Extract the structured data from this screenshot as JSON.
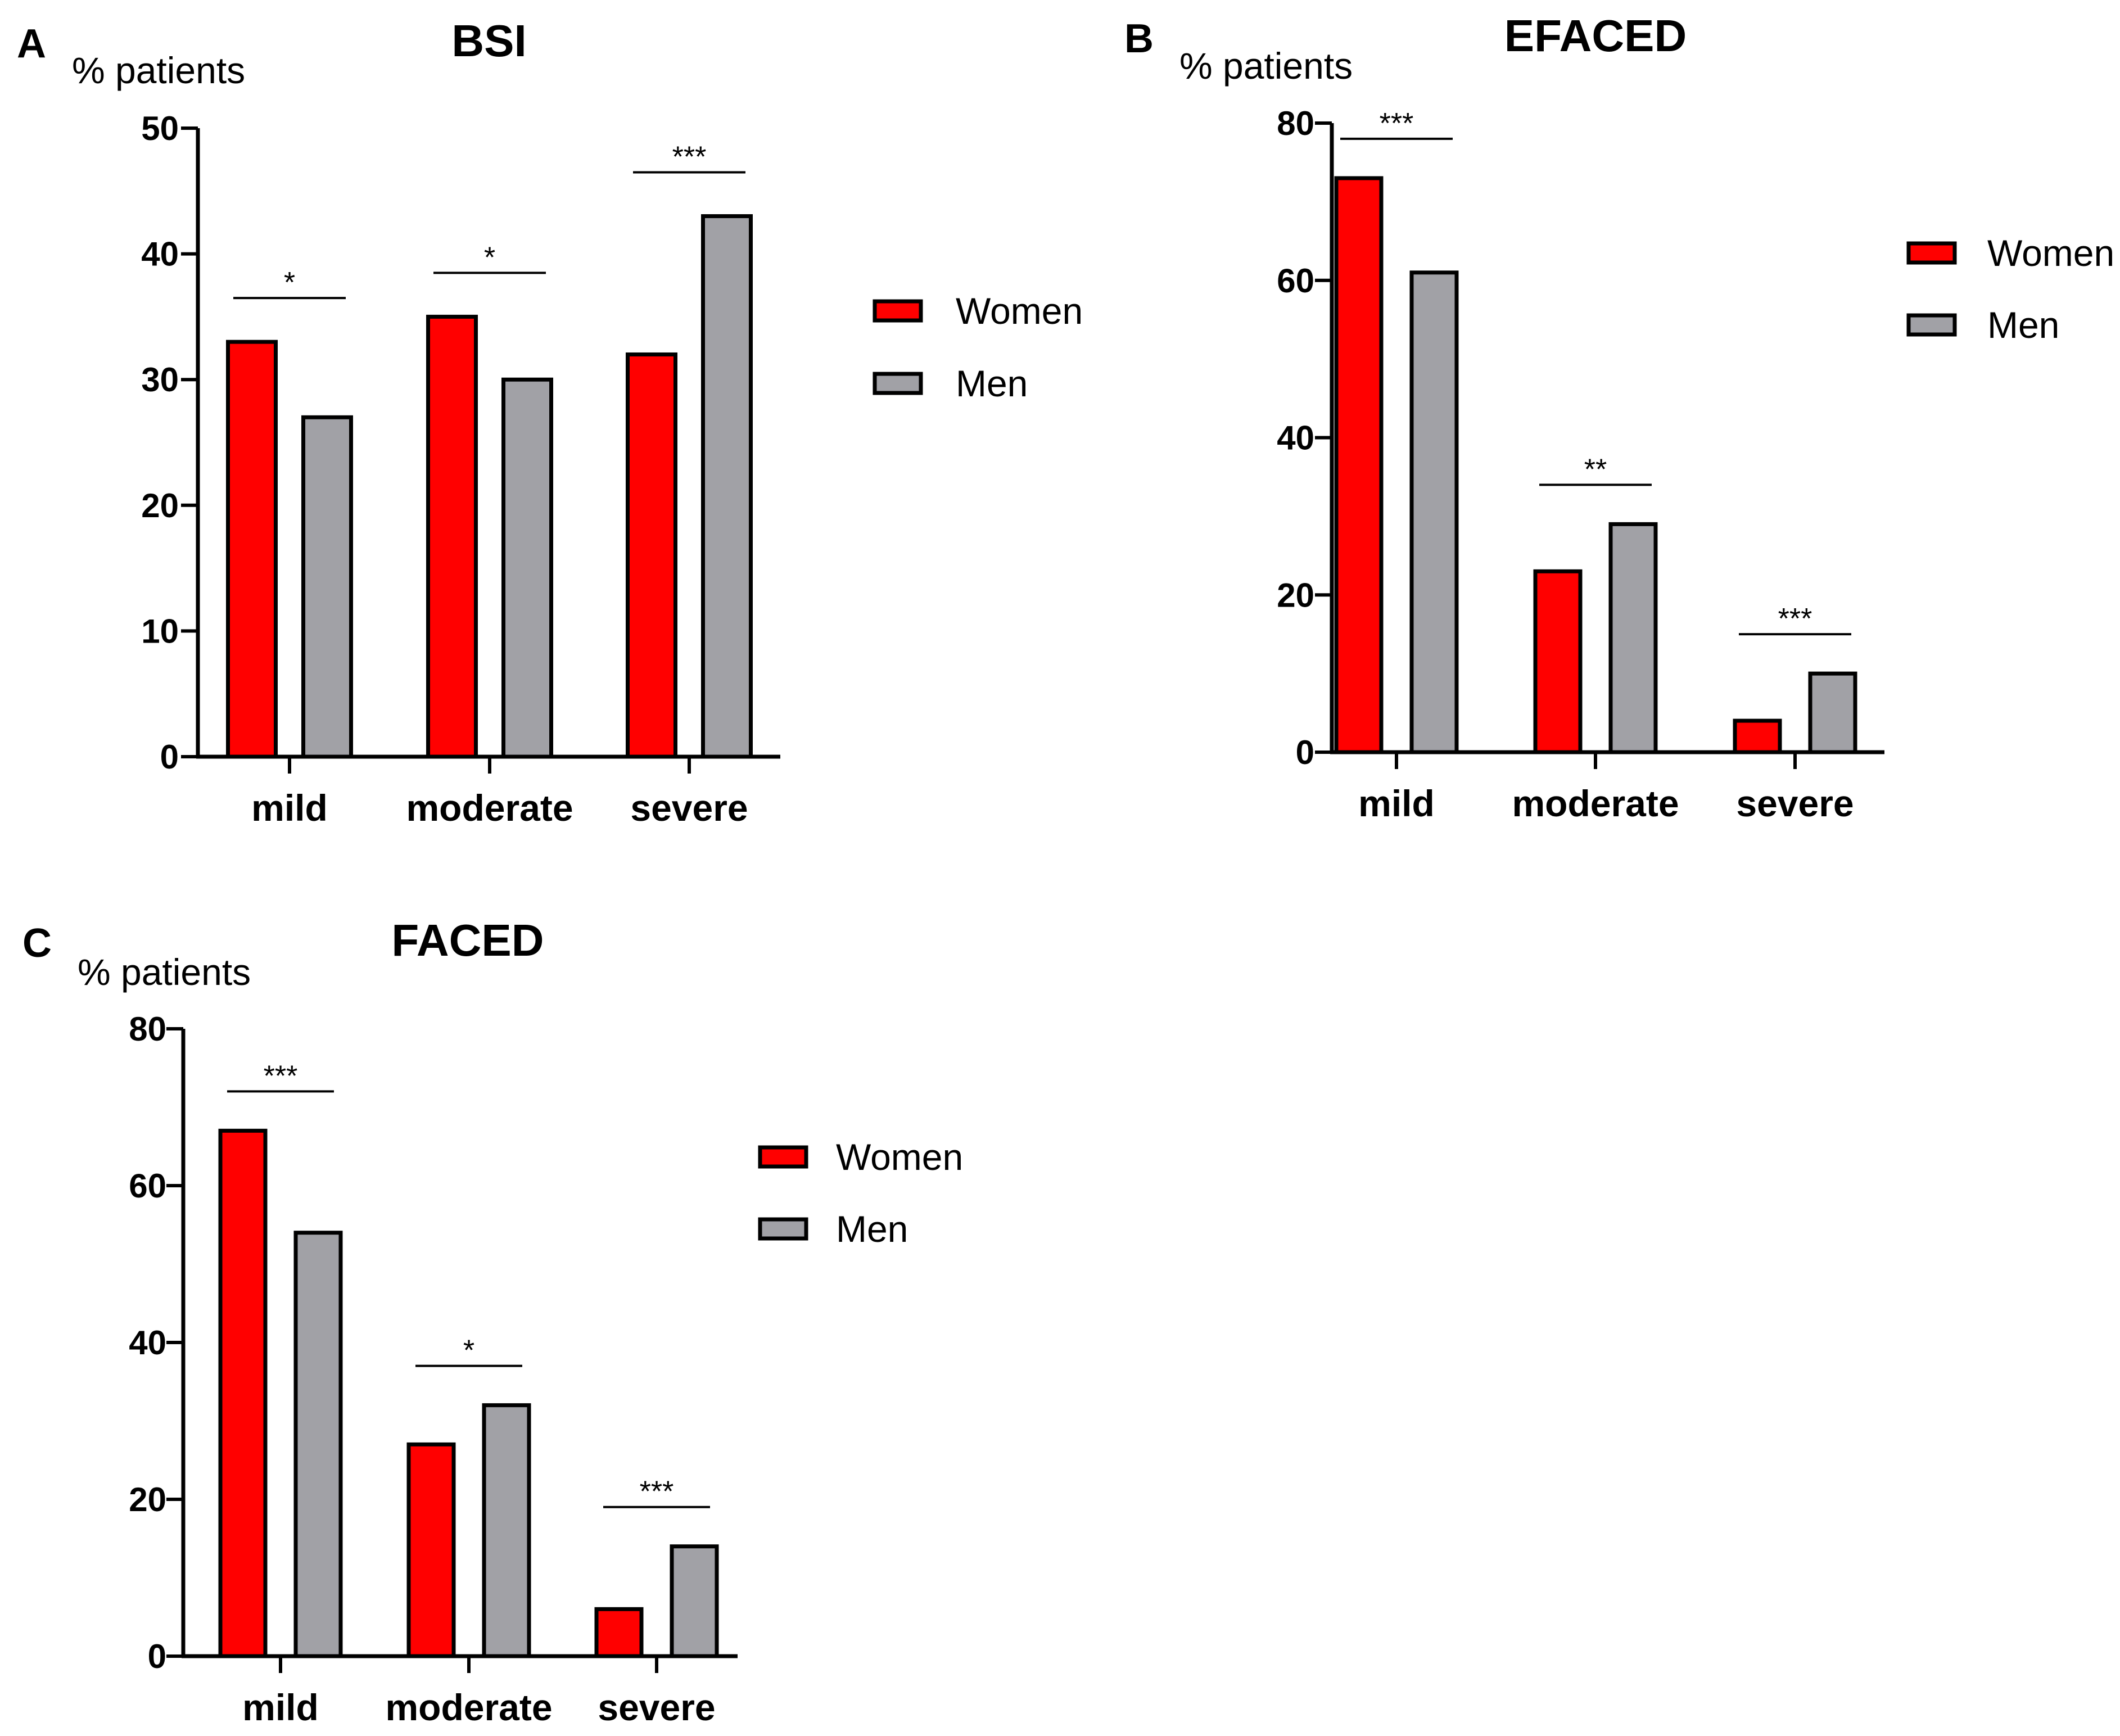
{
  "series_colors": {
    "Women": "#ff0000",
    "Men": "#a1a1a6"
  },
  "chart_data": [
    {
      "type": "bar",
      "panel": "A",
      "title": "BSI",
      "ylabel": "% patients",
      "xlabel": "",
      "ylim": [
        0,
        50
      ],
      "yticks": [
        0,
        10,
        20,
        30,
        40,
        50
      ],
      "categories": [
        "mild",
        "moderate",
        "severe"
      ],
      "series": [
        {
          "name": "Women",
          "values": [
            33,
            35,
            32
          ]
        },
        {
          "name": "Men",
          "values": [
            27,
            30,
            43
          ]
        }
      ],
      "significance": [
        "*",
        "*",
        "***"
      ],
      "legend": [
        "Women",
        "Men"
      ],
      "legend_position": "right"
    },
    {
      "type": "bar",
      "panel": "B",
      "title": "EFACED",
      "ylabel": "% patients",
      "xlabel": "",
      "ylim": [
        0,
        80
      ],
      "yticks": [
        0,
        20,
        40,
        60,
        80
      ],
      "categories": [
        "mild",
        "moderate",
        "severe"
      ],
      "series": [
        {
          "name": "Women",
          "values": [
            73,
            23,
            4
          ]
        },
        {
          "name": "Men",
          "values": [
            61,
            29,
            10
          ]
        }
      ],
      "significance": [
        "***",
        "**",
        "***"
      ],
      "legend": [
        "Women",
        "Men"
      ],
      "legend_position": "right"
    },
    {
      "type": "bar",
      "panel": "C",
      "title": "FACED",
      "ylabel": "% patients",
      "xlabel": "",
      "ylim": [
        0,
        80
      ],
      "yticks": [
        0,
        20,
        40,
        60,
        80
      ],
      "categories": [
        "mild",
        "moderate",
        "severe"
      ],
      "series": [
        {
          "name": "Women",
          "values": [
            67,
            27,
            6
          ]
        },
        {
          "name": "Men",
          "values": [
            54,
            32,
            14
          ]
        }
      ],
      "significance": [
        "***",
        "*",
        "***"
      ],
      "legend": [
        "Women",
        "Men"
      ],
      "legend_position": "right"
    }
  ]
}
